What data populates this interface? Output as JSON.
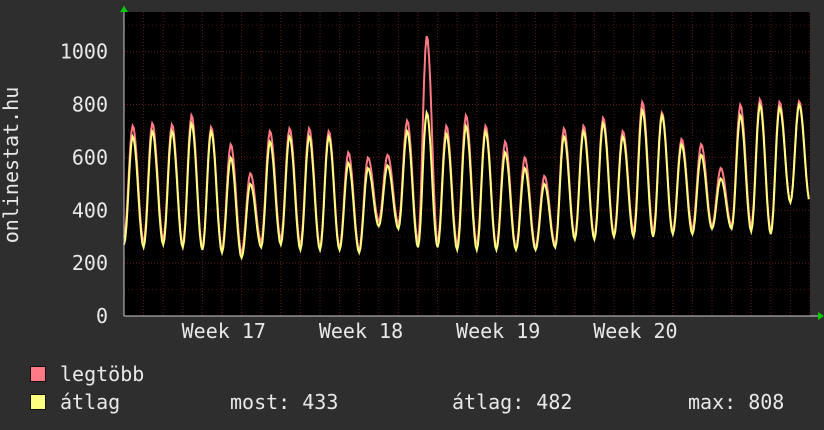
{
  "chart_data": {
    "type": "line",
    "ylabel": "onlinestat.hu",
    "ylim": [
      0,
      1150
    ],
    "yticks": [
      0,
      200,
      400,
      600,
      800,
      1000
    ],
    "xticks": [
      "Week 17",
      "Week 18",
      "Week 19",
      "Week 20"
    ],
    "grid": true,
    "colors": {
      "background": "#2e2e2e",
      "plot": "#000000",
      "grid": "#5a1a1a",
      "axis": "#cccccc",
      "arrow": "#00cc00"
    },
    "daily_amplitude_days": 35,
    "series": [
      {
        "name": "legtöbb",
        "color": "#ff7a85",
        "daily_peak": [
          720,
          730,
          725,
          760,
          715,
          650,
          540,
          700,
          710,
          710,
          700,
          620,
          600,
          610,
          740,
          1060,
          720,
          760,
          720,
          660,
          600,
          530,
          710,
          720,
          750,
          700,
          810,
          770,
          670,
          650,
          560,
          800,
          820,
          810,
          812
        ],
        "daily_trough": [
          300,
          280,
          290,
          270,
          260,
          250,
          240,
          280,
          290,
          270,
          260,
          260,
          250,
          360,
          350,
          280,
          280,
          270,
          270,
          260,
          260,
          260,
          270,
          300,
          300,
          310,
          320,
          320,
          320,
          330,
          340,
          340,
          340,
          320,
          430
        ]
      },
      {
        "name": "átlag",
        "color": "#ffff80",
        "daily_peak": [
          680,
          700,
          700,
          730,
          700,
          600,
          500,
          660,
          680,
          680,
          680,
          580,
          560,
          570,
          700,
          770,
          690,
          720,
          700,
          620,
          560,
          500,
          680,
          700,
          730,
          680,
          780,
          760,
          650,
          610,
          520,
          760,
          800,
          790,
          800
        ],
        "daily_trough": [
          270,
          260,
          270,
          260,
          250,
          240,
          220,
          260,
          270,
          250,
          250,
          250,
          240,
          340,
          330,
          260,
          260,
          250,
          250,
          250,
          250,
          250,
          260,
          290,
          290,
          300,
          300,
          300,
          310,
          310,
          330,
          330,
          320,
          310,
          430
        ]
      }
    ]
  },
  "legend": [
    {
      "label": "legtöbb",
      "color": "#ff7a85"
    },
    {
      "label": "átlag",
      "color": "#ffff80"
    }
  ],
  "stats": {
    "most": "most: 433",
    "atlag": "átlag: 482",
    "max": "max: 808"
  }
}
